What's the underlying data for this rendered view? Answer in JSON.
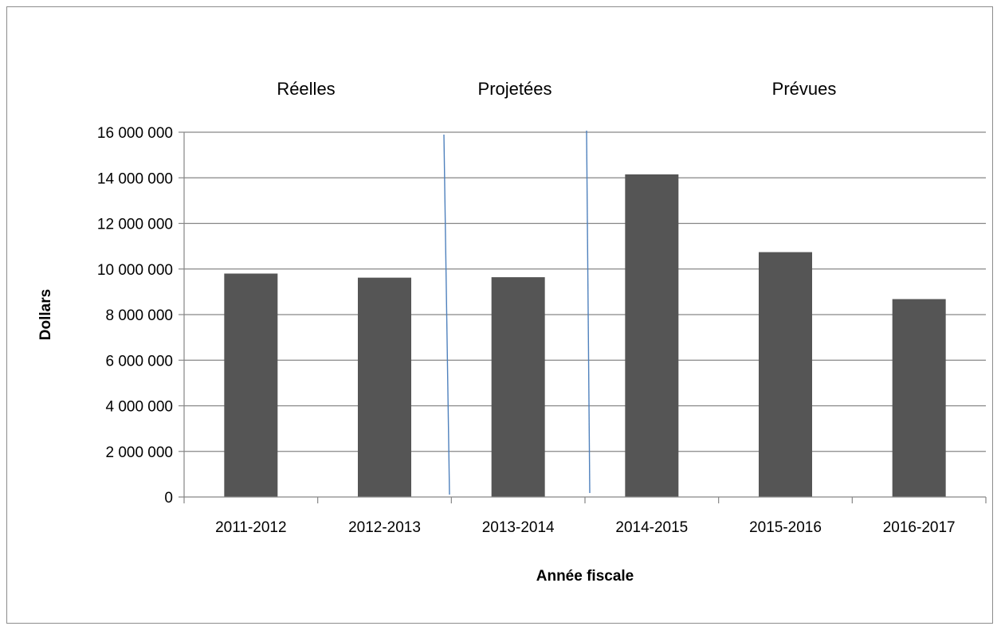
{
  "chart_data": {
    "type": "bar",
    "categories": [
      "2011-2012",
      "2012-2013",
      "2013-2014",
      "2014-2015",
      "2015-2016",
      "2016-2017"
    ],
    "series": [
      {
        "values": [
          9800000,
          9620000,
          9640000,
          14150000,
          10740000,
          8680000
        ]
      }
    ],
    "xlabel": "Année fiscale",
    "ylabel": "Dollars",
    "ylim": [
      0,
      16000000
    ],
    "yticks": [
      0,
      2000000,
      4000000,
      6000000,
      8000000,
      10000000,
      12000000,
      14000000,
      16000000
    ],
    "ytick_labels": [
      "0",
      "2 000 000",
      "4 000 000",
      "6 000 000",
      "8 000 000",
      "10 000 000",
      "12 000 000",
      "14 000 000",
      "16 000 000"
    ],
    "grid": true,
    "legend": "none",
    "sections": [
      {
        "label": "Réelles",
        "categories": [
          "2011-2012",
          "2012-2013"
        ]
      },
      {
        "label": "Projetées",
        "categories": [
          "2013-2014"
        ]
      },
      {
        "label": "Prévues",
        "categories": [
          "2014-2015",
          "2015-2016",
          "2016-2017"
        ]
      }
    ],
    "colors": {
      "bar": "#555555",
      "grid": "#868686",
      "divider": "#4f81bd",
      "axis": "#868686"
    }
  }
}
